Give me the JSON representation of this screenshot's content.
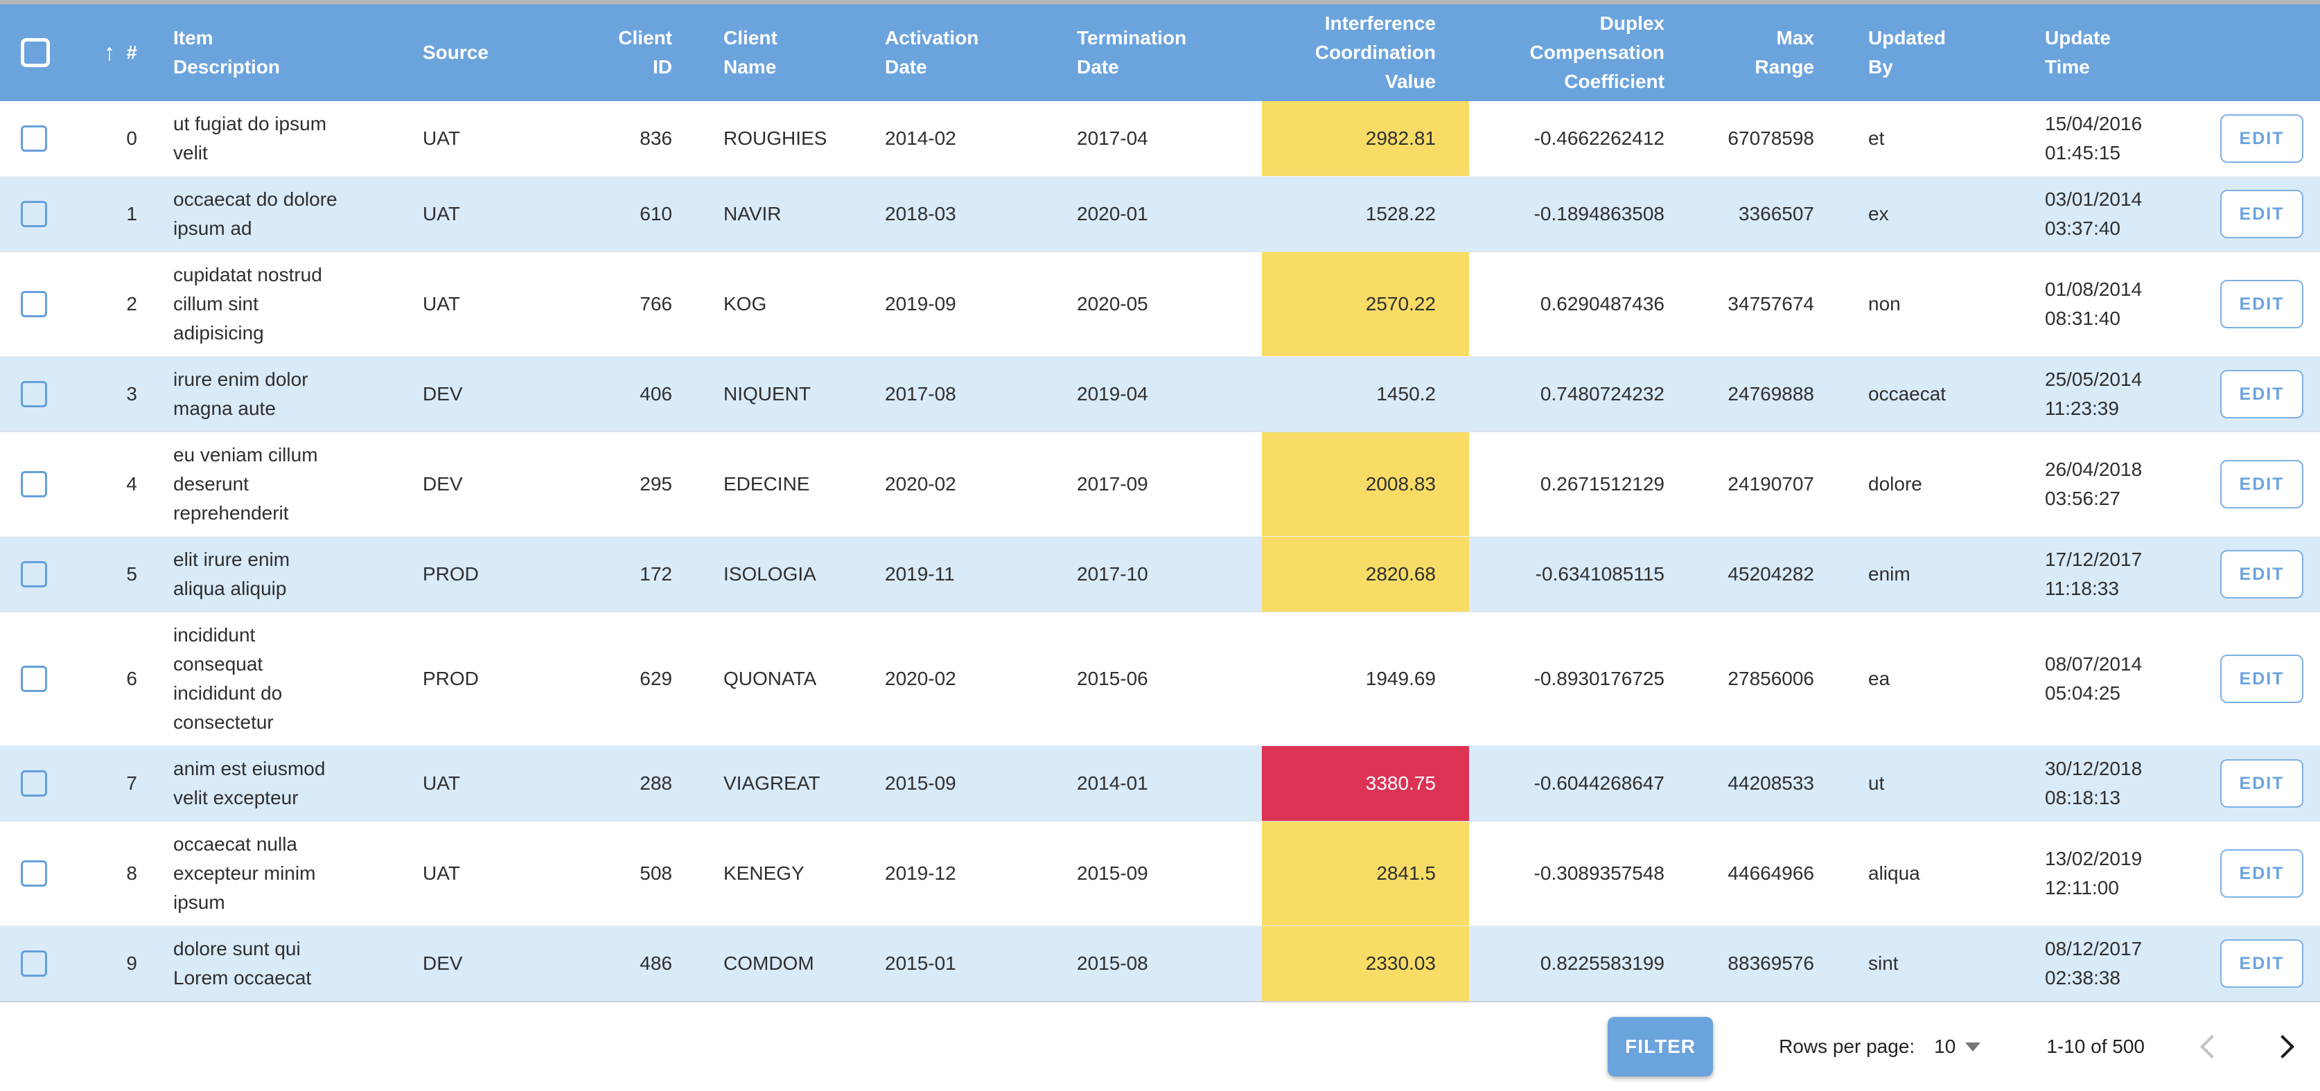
{
  "colors": {
    "header_bg": "#6ba3dd",
    "zebra_row_bg": "#d9eaf8",
    "highlight_yellow": "#f8dc66",
    "highlight_red": "#dc3355",
    "edit_accent": "#6ba3e0",
    "top_strip": "#b7b7b7"
  },
  "table": {
    "edit_label": "EDIT",
    "columns": {
      "sort_icon": "up-arrow",
      "num": "#",
      "desc": "Item\nDescription",
      "source": "Source",
      "client_id": "Client\nID",
      "client_name": "Client\nName",
      "activation": "Activation\nDate",
      "termination": "Termination\nDate",
      "interference": "Interference\nCoordination\nValue",
      "duplex": "Duplex\nCompensation\nCoefficient",
      "max_range": "Max\nRange",
      "updated_by": "Updated\nBy",
      "update_time": "Update\nTime"
    },
    "rows": [
      {
        "num": "0",
        "desc": "ut fugiat do ipsum velit",
        "source": "UAT",
        "client_id": "836",
        "client_name": "ROUGHIES",
        "activation": "2014-02",
        "termination": "2017-04",
        "interference": "2982.81",
        "highlight": "yellow",
        "duplex": "-0.4662262412",
        "max_range": "67078598",
        "updated_by": "et",
        "update_time": "15/04/2016\n01:45:15"
      },
      {
        "num": "1",
        "desc": "occaecat do dolore ipsum ad",
        "source": "UAT",
        "client_id": "610",
        "client_name": "NAVIR",
        "activation": "2018-03",
        "termination": "2020-01",
        "interference": "1528.22",
        "highlight": "none",
        "duplex": "-0.1894863508",
        "max_range": "3366507",
        "updated_by": "ex",
        "update_time": "03/01/2014\n03:37:40"
      },
      {
        "num": "2",
        "desc": "cupidatat nostrud cillum sint adipisicing",
        "source": "UAT",
        "client_id": "766",
        "client_name": "KOG",
        "activation": "2019-09",
        "termination": "2020-05",
        "interference": "2570.22",
        "highlight": "yellow",
        "duplex": "0.6290487436",
        "max_range": "34757674",
        "updated_by": "non",
        "update_time": "01/08/2014\n08:31:40"
      },
      {
        "num": "3",
        "desc": "irure enim dolor magna aute",
        "source": "DEV",
        "client_id": "406",
        "client_name": "NIQUENT",
        "activation": "2017-08",
        "termination": "2019-04",
        "interference": "1450.2",
        "highlight": "none",
        "duplex": "0.7480724232",
        "max_range": "24769888",
        "updated_by": "occaecat",
        "update_time": "25/05/2014\n11:23:39"
      },
      {
        "num": "4",
        "desc": "eu veniam cillum deserunt reprehenderit",
        "source": "DEV",
        "client_id": "295",
        "client_name": "EDECINE",
        "activation": "2020-02",
        "termination": "2017-09",
        "interference": "2008.83",
        "highlight": "yellow",
        "duplex": "0.2671512129",
        "max_range": "24190707",
        "updated_by": "dolore",
        "update_time": "26/04/2018\n03:56:27"
      },
      {
        "num": "5",
        "desc": "elit irure enim aliqua aliquip",
        "source": "PROD",
        "client_id": "172",
        "client_name": "ISOLOGIA",
        "activation": "2019-11",
        "termination": "2017-10",
        "interference": "2820.68",
        "highlight": "yellow",
        "duplex": "-0.6341085115",
        "max_range": "45204282",
        "updated_by": "enim",
        "update_time": "17/12/2017\n11:18:33"
      },
      {
        "num": "6",
        "desc": "incididunt consequat incididunt do consectetur",
        "source": "PROD",
        "client_id": "629",
        "client_name": "QUONATA",
        "activation": "2020-02",
        "termination": "2015-06",
        "interference": "1949.69",
        "highlight": "none",
        "duplex": "-0.8930176725",
        "max_range": "27856006",
        "updated_by": "ea",
        "update_time": "08/07/2014\n05:04:25"
      },
      {
        "num": "7",
        "desc": "anim est eiusmod velit excepteur",
        "source": "UAT",
        "client_id": "288",
        "client_name": "VIAGREAT",
        "activation": "2015-09",
        "termination": "2014-01",
        "interference": "3380.75",
        "highlight": "red",
        "duplex": "-0.6044268647",
        "max_range": "44208533",
        "updated_by": "ut",
        "update_time": "30/12/2018\n08:18:13"
      },
      {
        "num": "8",
        "desc": "occaecat nulla excepteur minim ipsum",
        "source": "UAT",
        "client_id": "508",
        "client_name": "KENEGY",
        "activation": "2019-12",
        "termination": "2015-09",
        "interference": "2841.5",
        "highlight": "yellow",
        "duplex": "-0.3089357548",
        "max_range": "44664966",
        "updated_by": "aliqua",
        "update_time": "13/02/2019\n12:11:00"
      },
      {
        "num": "9",
        "desc": "dolore sunt qui Lorem occaecat",
        "source": "DEV",
        "client_id": "486",
        "client_name": "COMDOM",
        "activation": "2015-01",
        "termination": "2015-08",
        "interference": "2330.03",
        "highlight": "yellow",
        "duplex": "0.8225583199",
        "max_range": "88369576",
        "updated_by": "sint",
        "update_time": "08/12/2017\n02:38:38"
      }
    ]
  },
  "footer": {
    "filter_label": "FILTER",
    "rows_per_page_label": "Rows per page:",
    "rows_per_page_value": "10",
    "range_label": "1-10 of 500"
  }
}
